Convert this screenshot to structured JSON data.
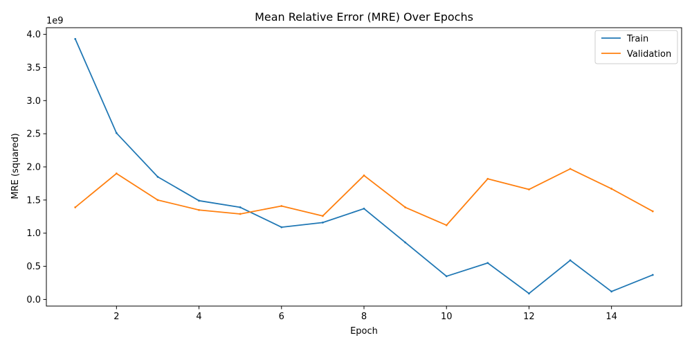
{
  "chart_data": {
    "type": "line",
    "title": "Mean Relative Error (MRE) Over Epochs",
    "xlabel": "Epoch",
    "ylabel": "MRE (squared)",
    "y_offset_label": "1e9",
    "x": [
      1,
      2,
      3,
      4,
      5,
      6,
      7,
      8,
      9,
      10,
      11,
      12,
      13,
      14,
      15
    ],
    "xlim": [
      0.3,
      15.7
    ],
    "ylim": [
      -0.1,
      4.1
    ],
    "y_scale_factor": 1000000000,
    "x_ticks": [
      2,
      4,
      6,
      8,
      10,
      12,
      14
    ],
    "x_tick_labels": [
      "2",
      "4",
      "6",
      "8",
      "10",
      "12",
      "14"
    ],
    "y_ticks": [
      0.0,
      0.5,
      1.0,
      1.5,
      2.0,
      2.5,
      3.0,
      3.5,
      4.0
    ],
    "y_tick_labels": [
      "0.0",
      "0.5",
      "1.0",
      "1.5",
      "2.0",
      "2.5",
      "3.0",
      "3.5",
      "4.0"
    ],
    "grid": false,
    "legend_position": "top-right",
    "series": [
      {
        "name": "Train",
        "color": "#1f77b4",
        "values": [
          3.93,
          2.51,
          1.85,
          1.49,
          1.39,
          1.09,
          1.16,
          1.37,
          0.86,
          0.35,
          0.55,
          0.09,
          0.59,
          0.12,
          0.37
        ]
      },
      {
        "name": "Validation",
        "color": "#ff7f0e",
        "values": [
          1.39,
          1.9,
          1.5,
          1.35,
          1.29,
          1.41,
          1.26,
          1.87,
          1.39,
          1.12,
          1.82,
          1.66,
          1.97,
          1.67,
          1.33
        ]
      }
    ]
  }
}
